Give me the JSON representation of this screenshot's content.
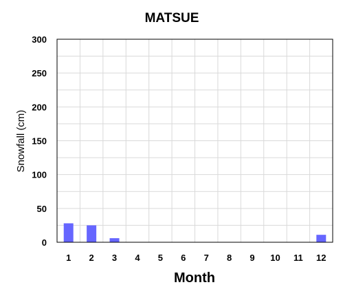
{
  "chart_data": {
    "type": "bar",
    "title": "MATSUE",
    "xlabel": "Month",
    "ylabel": "Snowfall (cm)",
    "categories": [
      "1",
      "2",
      "3",
      "4",
      "5",
      "6",
      "7",
      "8",
      "9",
      "10",
      "11",
      "12"
    ],
    "values": [
      28,
      25,
      6,
      0,
      0,
      0,
      0,
      0,
      0,
      0,
      0,
      11
    ],
    "ylim": [
      0,
      300
    ],
    "yticks": [
      "0",
      "50",
      "100",
      "150",
      "200",
      "250",
      "300"
    ],
    "grid": true,
    "bar_color": "#6666ff",
    "grid_color": "#d9d9d9",
    "frame_color": "#000000"
  }
}
